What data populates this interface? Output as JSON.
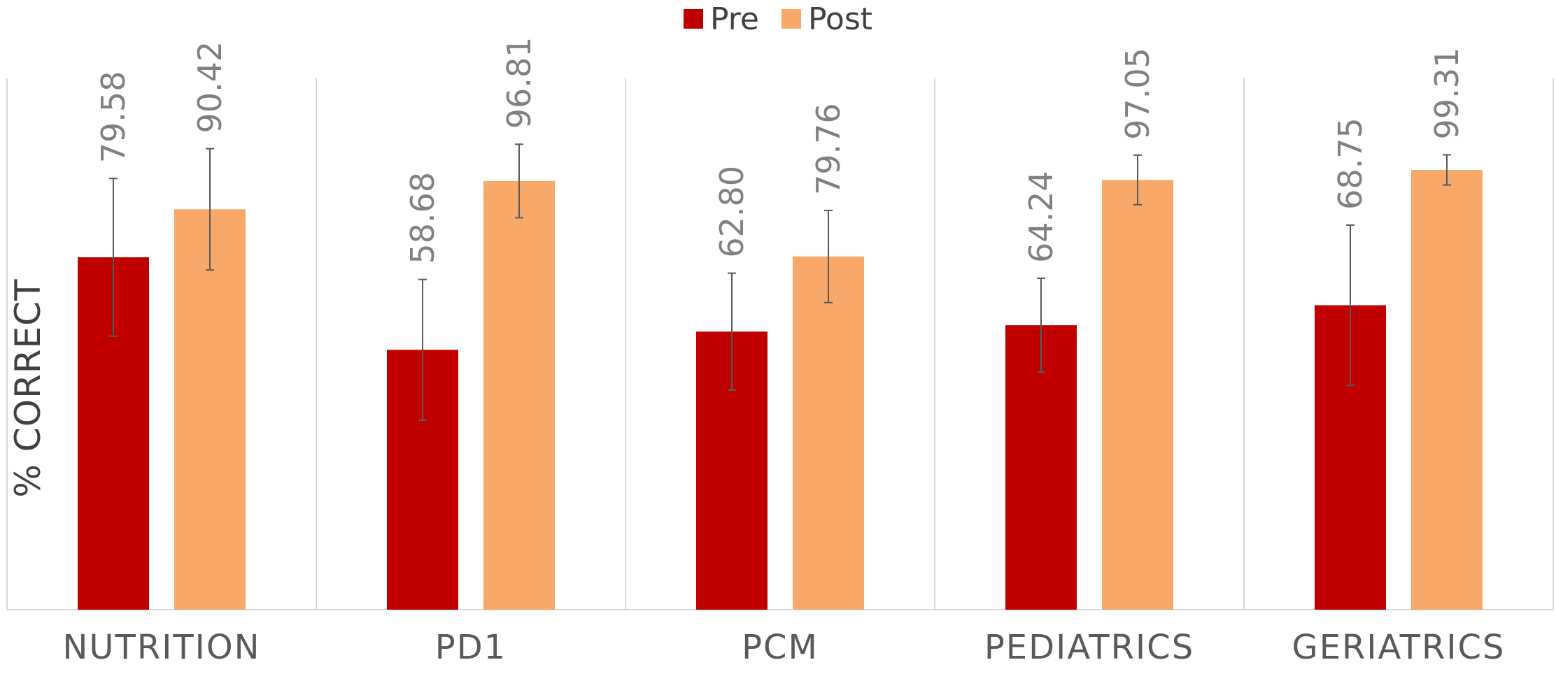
{
  "chart_data": {
    "type": "bar",
    "categories": [
      "NUTRITION",
      "PD1",
      "PCM",
      "PEDIATRICS",
      "GERIATRICS"
    ],
    "series": [
      {
        "name": "Pre",
        "color": "#c00000",
        "values": [
          79.58,
          58.68,
          62.8,
          64.24,
          68.75
        ],
        "labels": [
          "79.58",
          "58.68",
          "62.80",
          "64.24",
          "68.75"
        ],
        "error": [
          17.8,
          15.9,
          13.2,
          10.6,
          18.1
        ]
      },
      {
        "name": "Post",
        "color": "#f8a869",
        "values": [
          90.42,
          96.81,
          79.76,
          97.05,
          99.31
        ],
        "labels": [
          "90.42",
          "96.81",
          "79.76",
          "97.05",
          "99.31"
        ],
        "error": [
          13.7,
          8.3,
          10.4,
          5.6,
          3.4
        ]
      }
    ],
    "ylabel": "% CORRECT",
    "ylim": [
      0,
      120
    ],
    "grid": false,
    "legend": "top-center"
  }
}
